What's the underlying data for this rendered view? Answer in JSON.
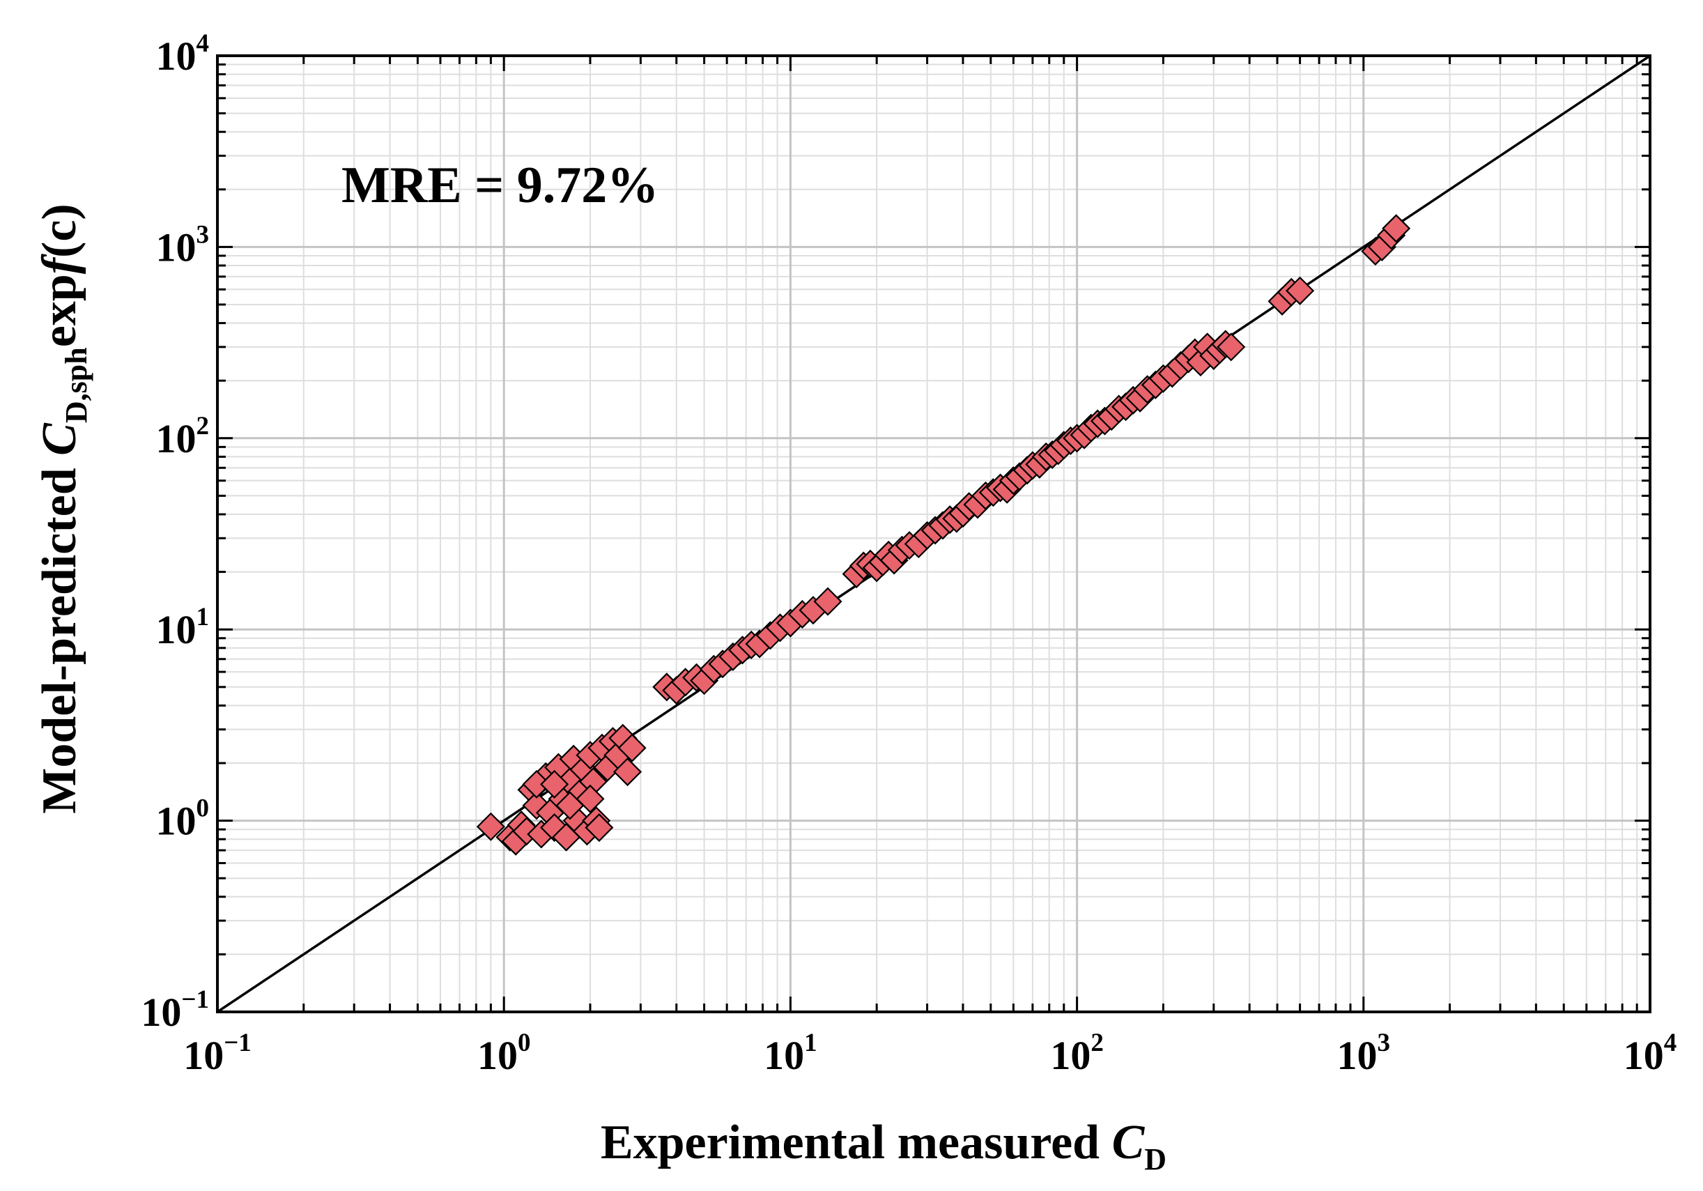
{
  "chart_data": {
    "type": "scatter",
    "scale": "log-log",
    "xlabel": {
      "main": "Experimental measured ",
      "var": "C",
      "sub": "D"
    },
    "ylabel": {
      "main": "Model-predicted ",
      "var": "C",
      "sub": "D,sph",
      "tail": "exp",
      "func": "f",
      "arg": "(c)"
    },
    "xlim": [
      0.1,
      10000
    ],
    "ylim": [
      0.1,
      10000
    ],
    "x_tick_labels": [
      {
        "base": "10",
        "exp": "−1",
        "value": 0.1
      },
      {
        "base": "10",
        "exp": "0",
        "value": 1
      },
      {
        "base": "10",
        "exp": "1",
        "value": 10
      },
      {
        "base": "10",
        "exp": "2",
        "value": 100
      },
      {
        "base": "10",
        "exp": "3",
        "value": 1000
      },
      {
        "base": "10",
        "exp": "4",
        "value": 10000
      }
    ],
    "y_tick_labels": [
      {
        "base": "10",
        "exp": "−1",
        "value": 0.1
      },
      {
        "base": "10",
        "exp": "0",
        "value": 1
      },
      {
        "base": "10",
        "exp": "1",
        "value": 10
      },
      {
        "base": "10",
        "exp": "2",
        "value": 100
      },
      {
        "base": "10",
        "exp": "3",
        "value": 1000
      },
      {
        "base": "10",
        "exp": "4",
        "value": 10000
      }
    ],
    "grid": true,
    "annotation": "MRE = 9.72%",
    "reference_line": {
      "name": "y = x",
      "from": [
        0.1,
        0.1
      ],
      "to": [
        10000,
        10000
      ],
      "color": "#000000"
    },
    "marker": {
      "shape": "diamond",
      "fill": "#e8636b",
      "stroke": "#000000"
    },
    "series": [
      {
        "name": "data",
        "points": [
          [
            0.9,
            0.93
          ],
          [
            1.05,
            0.82
          ],
          [
            1.1,
            0.78
          ],
          [
            1.15,
            0.95
          ],
          [
            1.2,
            0.88
          ],
          [
            1.25,
            1.45
          ],
          [
            1.3,
            1.2
          ],
          [
            1.35,
            0.85
          ],
          [
            1.4,
            1.7
          ],
          [
            1.45,
            1.1
          ],
          [
            1.5,
            0.92
          ],
          [
            1.55,
            1.9
          ],
          [
            1.6,
            1.3
          ],
          [
            1.65,
            0.82
          ],
          [
            1.7,
            1.6
          ],
          [
            1.75,
            2.1
          ],
          [
            1.8,
            1.0
          ],
          [
            1.85,
            1.4
          ],
          [
            1.9,
            1.85
          ],
          [
            1.95,
            0.88
          ],
          [
            2.0,
            2.2
          ],
          [
            2.05,
            1.6
          ],
          [
            2.1,
            1.0
          ],
          [
            2.2,
            2.4
          ],
          [
            2.3,
            1.9
          ],
          [
            2.4,
            2.6
          ],
          [
            2.5,
            2.2
          ],
          [
            2.6,
            2.7
          ],
          [
            2.7,
            1.8
          ],
          [
            2.8,
            2.4
          ],
          [
            1.3,
            1.55
          ],
          [
            1.7,
            1.2
          ],
          [
            2.0,
            1.3
          ],
          [
            2.15,
            0.92
          ],
          [
            1.5,
            1.55
          ],
          [
            3.7,
            5.0
          ],
          [
            4.0,
            4.8
          ],
          [
            4.3,
            5.3
          ],
          [
            4.7,
            5.6
          ],
          [
            5.0,
            5.4
          ],
          [
            5.4,
            6.2
          ],
          [
            5.8,
            6.6
          ],
          [
            6.3,
            7.2
          ],
          [
            6.8,
            7.8
          ],
          [
            7.3,
            8.3
          ],
          [
            7.8,
            8.4
          ],
          [
            8.5,
            9.3
          ],
          [
            9.2,
            10.2
          ],
          [
            10.0,
            10.8
          ],
          [
            11.0,
            12.0
          ],
          [
            12.0,
            12.6
          ],
          [
            13.5,
            14.0
          ],
          [
            17.0,
            19.5
          ],
          [
            18.0,
            21.5
          ],
          [
            19.0,
            22.0
          ],
          [
            20.0,
            21.0
          ],
          [
            21.0,
            22.5
          ],
          [
            22.0,
            24.5
          ],
          [
            23.0,
            23.0
          ],
          [
            24.5,
            26.0
          ],
          [
            26.0,
            27.5
          ],
          [
            28.0,
            28.0
          ],
          [
            30.0,
            31.0
          ],
          [
            32.0,
            33.0
          ],
          [
            34.0,
            35.0
          ],
          [
            36.0,
            37.5
          ],
          [
            38.0,
            38.0
          ],
          [
            40.0,
            40.5
          ],
          [
            42.0,
            44.0
          ],
          [
            45.0,
            45.0
          ],
          [
            48.0,
            50.0
          ],
          [
            51.0,
            52.0
          ],
          [
            54.0,
            55.0
          ],
          [
            57.0,
            54.0
          ],
          [
            60.0,
            60.0
          ],
          [
            63.0,
            63.0
          ],
          [
            67.0,
            68.0
          ],
          [
            70.0,
            72.0
          ],
          [
            74.0,
            73.0
          ],
          [
            78.0,
            80.0
          ],
          [
            82.0,
            82.0
          ],
          [
            86.0,
            86.0
          ],
          [
            90.0,
            92.0
          ],
          [
            95.0,
            97.0
          ],
          [
            100.0,
            100.0
          ],
          [
            106.0,
            104.0
          ],
          [
            112.0,
            113.0
          ],
          [
            118.0,
            119.0
          ],
          [
            125.0,
            123.0
          ],
          [
            132.0,
            130.0
          ],
          [
            140.0,
            142.0
          ],
          [
            148.0,
            146.0
          ],
          [
            157.0,
            158.0
          ],
          [
            166.0,
            162.0
          ],
          [
            176.0,
            180.0
          ],
          [
            188.0,
            190.0
          ],
          [
            200.0,
            205.0
          ],
          [
            215.0,
            218.0
          ],
          [
            230.0,
            240.0
          ],
          [
            245.0,
            260.0
          ],
          [
            258.0,
            280.0
          ],
          [
            270.0,
            250.0
          ],
          [
            285.0,
            300.0
          ],
          [
            300.0,
            270.0
          ],
          [
            315.0,
            290.0
          ],
          [
            330.0,
            310.0
          ],
          [
            345.0,
            300.0
          ],
          [
            520.0,
            520.0
          ],
          [
            560.0,
            580.0
          ],
          [
            600.0,
            590.0
          ],
          [
            1100.0,
            950.0
          ],
          [
            1160.0,
            1000.0
          ],
          [
            1250.0,
            1150.0
          ],
          [
            1300.0,
            1250.0
          ]
        ]
      }
    ]
  }
}
